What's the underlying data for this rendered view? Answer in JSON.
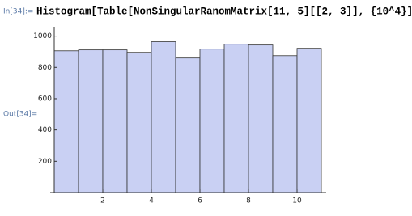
{
  "input_label": "In[34]:=",
  "input_code": "Histogram[Table[NonSingularRanomMatrix[11, 5][[2, 3]], {10^4}]]",
  "output_label": "Out[34]=",
  "chart_data": {
    "type": "histogram",
    "bins": [
      0,
      1,
      2,
      3,
      4,
      5,
      6,
      7,
      8,
      9,
      10,
      11
    ],
    "counts": [
      906,
      912,
      912,
      896,
      964,
      860,
      917,
      948,
      943,
      875,
      922
    ],
    "color": "#c9d0f3",
    "xlim": [
      0,
      11.2
    ],
    "xticks": [
      2,
      4,
      6,
      8,
      10
    ],
    "ylim": [
      0,
      1060
    ],
    "yticks": [
      200,
      400,
      600,
      800,
      1000
    ]
  }
}
